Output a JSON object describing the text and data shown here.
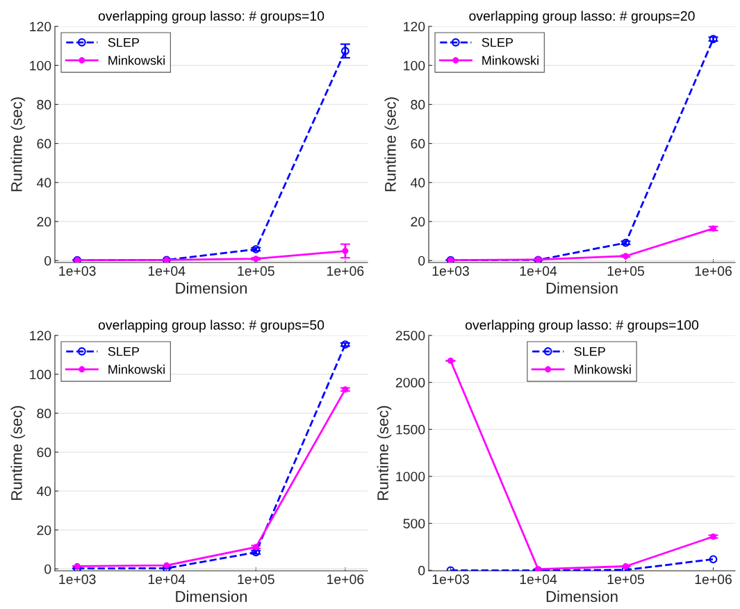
{
  "chart_data": [
    {
      "type": "line",
      "title": "overlapping group lasso: # groups=10",
      "xlabel": "Dimension",
      "ylabel": "Runtime (sec)",
      "categories": [
        "1e+03",
        "1e+04",
        "1e+05",
        "1e+06"
      ],
      "ylim": [
        -1,
        120
      ],
      "yticks": [
        0,
        20,
        40,
        60,
        80,
        100,
        120
      ],
      "grid": "y",
      "legend": "top left",
      "series": [
        {
          "name": "SLEP",
          "color": "#0000ff",
          "line_style": "dashed",
          "marker": "circle",
          "values": [
            0.2,
            0.3,
            5.8,
            107.4
          ],
          "errors": [
            null,
            null,
            0.8,
            3.5
          ]
        },
        {
          "name": "Minkowski",
          "color": "#ff00ff",
          "line_style": "solid",
          "marker": "circle",
          "values": [
            0.2,
            0.3,
            0.9,
            4.9
          ],
          "errors": [
            null,
            null,
            0.5,
            3.5
          ]
        }
      ]
    },
    {
      "type": "line",
      "title": "overlapping group lasso: # groups=20",
      "xlabel": "Dimension",
      "ylabel": "Runtime (sec)",
      "categories": [
        "1e+03",
        "1e+04",
        "1e+05",
        "1e+06"
      ],
      "ylim": [
        -1,
        120
      ],
      "yticks": [
        0,
        20,
        40,
        60,
        80,
        100,
        120
      ],
      "grid": "y",
      "legend": "top left",
      "series": [
        {
          "name": "SLEP",
          "color": "#0000ff",
          "line_style": "dashed",
          "marker": "circle",
          "values": [
            0.2,
            0.3,
            9.1,
            113.5
          ],
          "errors": [
            null,
            null,
            0.8,
            1
          ]
        },
        {
          "name": "Minkowski",
          "color": "#ff00ff",
          "line_style": "solid",
          "marker": "circle",
          "values": [
            0.2,
            0.5,
            2.3,
            16.4
          ],
          "errors": [
            null,
            null,
            0.5,
            1
          ]
        }
      ]
    },
    {
      "type": "line",
      "title": "overlapping group lasso: # groups=50",
      "xlabel": "Dimension",
      "ylabel": "Runtime (sec)",
      "categories": [
        "1e+03",
        "1e+04",
        "1e+05",
        "1e+06"
      ],
      "ylim": [
        -1,
        120
      ],
      "yticks": [
        0,
        20,
        40,
        60,
        80,
        100,
        120
      ],
      "grid": "y",
      "legend": "top left",
      "series": [
        {
          "name": "SLEP",
          "color": "#0000ff",
          "line_style": "dashed",
          "marker": "circle",
          "values": [
            0.2,
            0.3,
            8.5,
            115.3
          ],
          "errors": [
            null,
            null,
            0.8,
            0.8
          ]
        },
        {
          "name": "Minkowski",
          "color": "#ff00ff",
          "line_style": "solid",
          "marker": "circle",
          "values": [
            1.4,
            1.8,
            11.2,
            92.2
          ],
          "errors": [
            null,
            null,
            0.8,
            0.8
          ]
        }
      ]
    },
    {
      "type": "line",
      "title": "overlapping group lasso: # groups=100",
      "xlabel": "Dimension",
      "ylabel": "Runtime (sec)",
      "categories": [
        "1e+03",
        "1e+04",
        "1e+05",
        "1e+06"
      ],
      "ylim": [
        -5,
        2500
      ],
      "yticks": [
        0,
        500,
        1000,
        1500,
        2000,
        2500
      ],
      "grid": "y",
      "legend": "top",
      "series": [
        {
          "name": "SLEP",
          "color": "#0000ff",
          "line_style": "dashed",
          "marker": "circle",
          "values": [
            0,
            0,
            5,
            118
          ]
        },
        {
          "name": "Minkowski",
          "color": "#ff00ff",
          "line_style": "solid",
          "marker": "circle",
          "values": [
            2230,
            12,
            43,
            359
          ],
          "errors": [
            null,
            null,
            null,
            15
          ]
        }
      ]
    }
  ]
}
